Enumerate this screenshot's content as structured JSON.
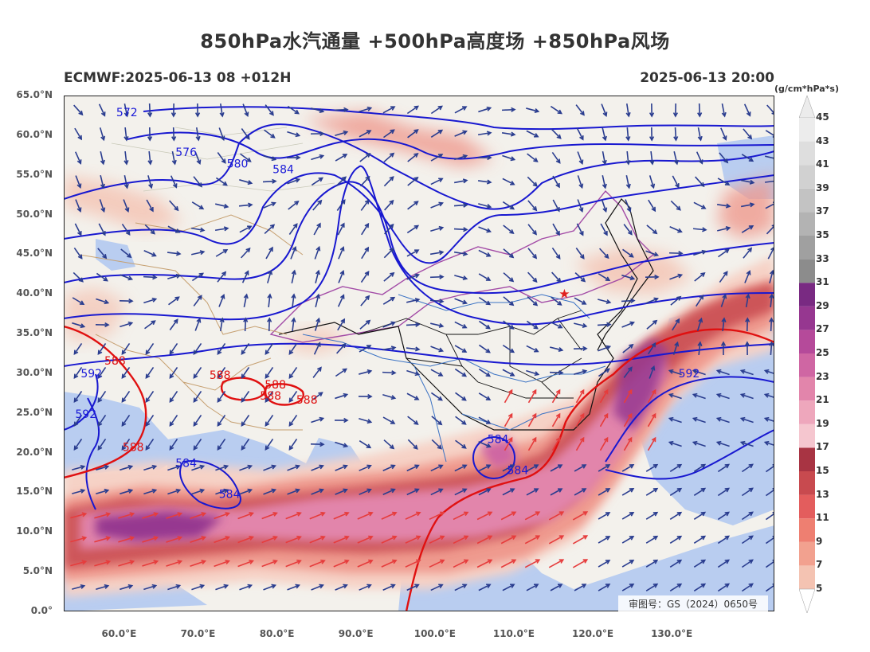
{
  "title": "850hPa水汽通量 +500hPa高度场 +850hPa风场",
  "model_run": "ECMWF:2025-06-13 08 +012H",
  "valid_time": "2025-06-13 20:00",
  "colorbar": {
    "unit": "(g/cm*hPa*s)",
    "levels": [
      "5",
      "7",
      "9",
      "11",
      "13",
      "15",
      "17",
      "19",
      "21",
      "23",
      "25",
      "27",
      "29",
      "31",
      "33",
      "35",
      "37",
      "39",
      "41",
      "43",
      "45"
    ],
    "colors": [
      "#f6e0d6",
      "#f4c3b2",
      "#f2a18f",
      "#ee7f71",
      "#e35d5d",
      "#c84a4f",
      "#a83443",
      "#f5c6cf",
      "#eea7bc",
      "#e285ab",
      "#cf66a3",
      "#b54a9a",
      "#963790",
      "#792a82",
      "#8c8c8c",
      "#a0a0a0",
      "#b3b3b3",
      "#c3c3c3",
      "#d1d1d1",
      "#dedede",
      "#ececec"
    ]
  },
  "axes": {
    "lat_labels": [
      "65.0°N",
      "60.0°N",
      "55.0°N",
      "50.0°N",
      "45.0°N",
      "40.0°N",
      "35.0°N",
      "30.0°N",
      "25.0°N",
      "20.0°N",
      "15.0°N",
      "10.0°N",
      "5.0°N",
      "0.0°"
    ],
    "lon_labels": [
      "60.0°E",
      "70.0°E",
      "80.0°E",
      "90.0°E",
      "100.0°E",
      "110.0°E",
      "120.0°E",
      "130.0°E"
    ],
    "lat_range": [
      0,
      65
    ],
    "lon_range": [
      53,
      143
    ]
  },
  "contour_labels": [
    {
      "text": "572",
      "lon": 61.0,
      "lat": 62.8,
      "color": "#1a1ad8"
    },
    {
      "text": "576",
      "lon": 68.5,
      "lat": 57.8,
      "color": "#1a1ad8"
    },
    {
      "text": "580",
      "lon": 75.0,
      "lat": 56.3,
      "color": "#1a1ad8"
    },
    {
      "text": "584",
      "lon": 80.8,
      "lat": 55.6,
      "color": "#1a1ad8"
    },
    {
      "text": "592",
      "lon": 56.5,
      "lat": 29.9,
      "color": "#1a1ad8"
    },
    {
      "text": "592",
      "lon": 55.8,
      "lat": 24.8,
      "color": "#1a1ad8"
    },
    {
      "text": "584",
      "lon": 68.5,
      "lat": 18.6,
      "color": "#1a1ad8"
    },
    {
      "text": "584",
      "lon": 74.0,
      "lat": 14.7,
      "color": "#1a1ad8"
    },
    {
      "text": "584",
      "lon": 108.0,
      "lat": 21.6,
      "color": "#1a1ad8"
    },
    {
      "text": "584",
      "lon": 110.5,
      "lat": 17.7,
      "color": "#1a1ad8"
    },
    {
      "text": "592",
      "lon": 132.2,
      "lat": 29.9,
      "color": "#1a1ad8"
    },
    {
      "text": "588",
      "lon": 59.5,
      "lat": 31.5,
      "color": "#e01010"
    },
    {
      "text": "588",
      "lon": 72.8,
      "lat": 29.7,
      "color": "#e01010"
    },
    {
      "text": "588",
      "lon": 79.8,
      "lat": 28.5,
      "color": "#e01010"
    },
    {
      "text": "588",
      "lon": 79.2,
      "lat": 27.1,
      "color": "#e01010"
    },
    {
      "text": "588",
      "lon": 83.8,
      "lat": 26.6,
      "color": "#e01010"
    },
    {
      "text": "588",
      "lon": 61.8,
      "lat": 20.6,
      "color": "#e01010"
    }
  ],
  "marker": {
    "symbol": "★",
    "lon": 116.4,
    "lat": 39.9,
    "color": "#e02020"
  },
  "review_number": "审图号：GS（2024）0650号"
}
